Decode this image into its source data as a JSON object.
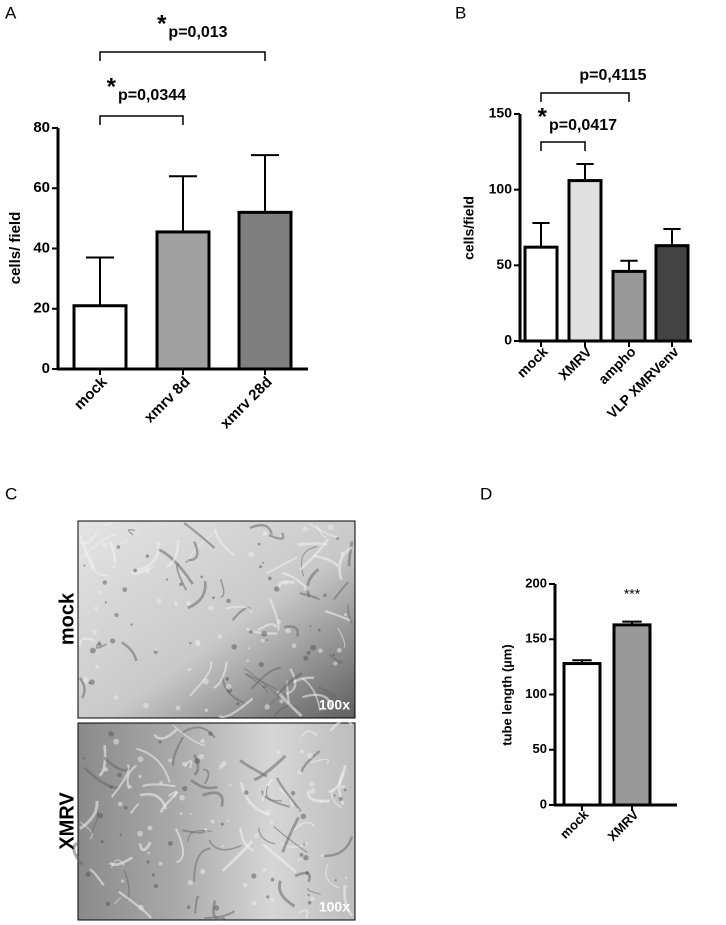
{
  "chart_data": [
    {
      "type": "bar",
      "panel_label": "A",
      "y_label": "cells/ field",
      "categories": [
        "mock",
        "xmrv 8d",
        "xmrv 28d"
      ],
      "values": [
        21,
        45.5,
        52
      ],
      "errors": [
        16,
        18.5,
        19
      ],
      "colors": [
        "#ffffff",
        "#a0a0a0",
        "#7f7f7f"
      ],
      "ylim": [
        0,
        80
      ],
      "yticks": [
        0,
        20,
        40,
        60,
        80
      ],
      "annotations": [
        {
          "star": "*",
          "text": "p=0,0344"
        },
        {
          "star": "*",
          "text": "p=0,013"
        }
      ]
    },
    {
      "type": "bar",
      "panel_label": "B",
      "y_label": "cells/field",
      "categories": [
        "mock",
        "XMRV",
        "ampho",
        "VLP XMRVenv"
      ],
      "values": [
        62,
        106,
        46,
        63
      ],
      "errors": [
        16,
        11,
        7,
        11
      ],
      "colors": [
        "#ffffff",
        "#e0e0e0",
        "#999999",
        "#444444"
      ],
      "ylim": [
        0,
        150
      ],
      "yticks": [
        0,
        50,
        100,
        150
      ],
      "annotations": [
        {
          "star": "*",
          "text": "p=0,0417"
        },
        {
          "text": "p=0,4115"
        }
      ]
    },
    {
      "type": "bar",
      "panel_label": "D",
      "y_label": "tube length (µm)",
      "categories": [
        "mock",
        "XMRV"
      ],
      "values": [
        128,
        163
      ],
      "errors": [
        3,
        3
      ],
      "colors": [
        "#ffffff",
        "#999999"
      ],
      "ylim": [
        0,
        200
      ],
      "yticks": [
        0,
        50,
        100,
        150,
        200
      ],
      "annotations": [
        {
          "text": "***"
        }
      ]
    }
  ],
  "panel_c": {
    "panel_label": "C",
    "images": [
      {
        "label": "mock",
        "magnification": "100x"
      },
      {
        "label": "XMRV",
        "magnification": "100x"
      }
    ]
  }
}
